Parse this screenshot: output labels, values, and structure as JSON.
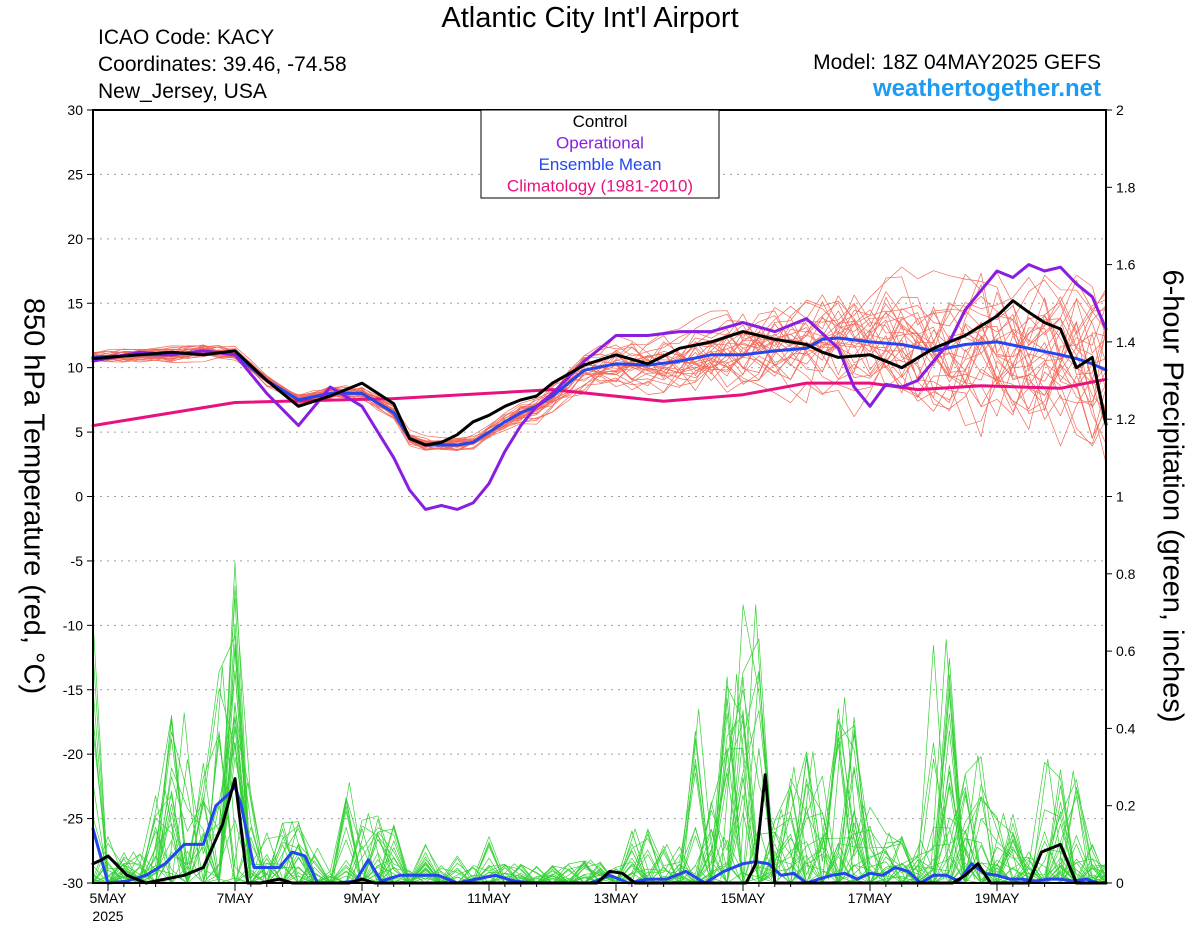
{
  "header": {
    "title": "Atlantic City Int'l Airport",
    "icao": "ICAO Code: KACY",
    "coordinates": "Coordinates: 39.46, -74.58",
    "location": "New_Jersey, USA",
    "model": "Model: 18Z 04MAY2025 GEFS",
    "site": "weathertogether.net"
  },
  "chart_data": {
    "type": "line",
    "ylabel_left": "850 hPa Temperature (red, °C)",
    "ylabel_right": "6-hour Precipitation (green, inches)",
    "ylim_left": [
      -30,
      30
    ],
    "ylim_right": [
      0,
      2
    ],
    "x_unit": "days after 00Z 5MAY 2025",
    "xlim": [
      0,
      15.75
    ],
    "x_ticks": [
      {
        "x": 0,
        "label": "5MAY",
        "sublabel": "2025"
      },
      {
        "x": 2,
        "label": "7MAY"
      },
      {
        "x": 4,
        "label": "9MAY"
      },
      {
        "x": 6,
        "label": "11MAY"
      },
      {
        "x": 8,
        "label": "13MAY"
      },
      {
        "x": 10,
        "label": "15MAY"
      },
      {
        "x": 12,
        "label": "17MAY"
      },
      {
        "x": 14,
        "label": "19MAY"
      }
    ],
    "y_ticks_left": [
      30,
      25,
      20,
      15,
      10,
      5,
      0,
      -5,
      -10,
      -15,
      -20,
      -25,
      -30
    ],
    "y_ticks_right": [
      2,
      1.8,
      1.6,
      1.4,
      1.2,
      1,
      0.8,
      0.6,
      0.4,
      0.2,
      0
    ],
    "grid": true,
    "legend_position": "top-center",
    "legend": [
      {
        "name": "Control",
        "color": "#000000"
      },
      {
        "name": "Operational",
        "color": "#8a1ee0"
      },
      {
        "name": "Ensemble Mean",
        "color": "#2346ee"
      },
      {
        "name": "Climatology (1981-2010)",
        "color": "#e8117f"
      }
    ],
    "colors": {
      "members_temp": "#f26a5a",
      "members_precip": "#36d136"
    },
    "temperature": {
      "climatology": {
        "x": [
          -0.25,
          2.0,
          4.5,
          7.0,
          8.75,
          10.0,
          11.0,
          12.0,
          12.75,
          13.75,
          15.0,
          16.0
        ],
        "y": [
          5.5,
          7.3,
          7.6,
          8.3,
          7.4,
          7.9,
          8.8,
          8.8,
          8.3,
          8.6,
          8.4,
          9.1
        ]
      },
      "control": {
        "x": [
          -0.25,
          0.5,
          1.0,
          1.5,
          2.0,
          2.5,
          3.0,
          3.5,
          4.0,
          4.5,
          4.75,
          5.0,
          5.25,
          5.5,
          5.75,
          6.0,
          6.25,
          6.5,
          6.75,
          7.0,
          7.5,
          8.0,
          8.5,
          9.0,
          9.5,
          10.0,
          10.5,
          11.0,
          11.25,
          11.5,
          12.0,
          12.5,
          13.0,
          13.5,
          14.0,
          14.25,
          14.5,
          14.75,
          15.0,
          15.25,
          15.5,
          15.75
        ],
        "y": [
          10.7,
          11.0,
          11.2,
          11.0,
          11.3,
          9.0,
          7.0,
          7.8,
          8.8,
          7.2,
          4.5,
          4.0,
          4.2,
          4.8,
          5.8,
          6.3,
          7.0,
          7.5,
          7.8,
          8.8,
          10.2,
          11.0,
          10.3,
          11.5,
          12.0,
          12.8,
          12.2,
          11.8,
          11.2,
          10.8,
          11.0,
          10.0,
          11.5,
          12.5,
          14.0,
          15.2,
          14.3,
          13.5,
          13.0,
          10.0,
          10.8,
          5.6
        ]
      },
      "operational": {
        "x": [
          -0.25,
          0.5,
          1.0,
          1.5,
          2.0,
          2.5,
          3.0,
          3.5,
          4.0,
          4.25,
          4.5,
          4.75,
          5.0,
          5.25,
          5.5,
          5.75,
          6.0,
          6.25,
          6.5,
          6.75,
          7.0,
          7.5,
          8.0,
          8.5,
          9.0,
          9.5,
          10.0,
          10.5,
          11.0,
          11.5,
          11.75,
          12.0,
          12.25,
          12.5,
          12.75,
          13.0,
          13.25,
          13.5,
          13.75,
          14.0,
          14.25,
          14.5,
          14.75,
          15.0,
          15.25,
          15.5,
          15.75
        ],
        "y": [
          10.5,
          11.2,
          11.0,
          11.3,
          11.0,
          8.0,
          5.5,
          8.5,
          7.0,
          5.0,
          3.0,
          0.5,
          -1.0,
          -0.7,
          -1.0,
          -0.5,
          1.0,
          3.5,
          5.5,
          7.0,
          8.0,
          10.5,
          12.5,
          12.5,
          12.8,
          12.8,
          13.5,
          12.8,
          13.8,
          11.5,
          8.5,
          7.0,
          8.7,
          8.5,
          9.0,
          10.5,
          12.0,
          14.5,
          16.0,
          17.5,
          17.0,
          18.0,
          17.5,
          17.8,
          16.5,
          15.5,
          13.0
        ]
      },
      "mean": {
        "x": [
          -0.25,
          0.5,
          1.0,
          1.5,
          2.0,
          2.5,
          3.0,
          3.5,
          4.0,
          4.5,
          4.75,
          5.0,
          5.25,
          5.5,
          5.75,
          6.0,
          6.25,
          6.5,
          6.75,
          7.0,
          7.5,
          8.0,
          8.5,
          9.0,
          9.5,
          10.0,
          10.5,
          11.0,
          11.25,
          11.5,
          12.0,
          12.5,
          13.0,
          13.5,
          14.0,
          14.5,
          15.0,
          15.25,
          15.5,
          15.75
        ],
        "y": [
          10.8,
          11.0,
          11.0,
          11.3,
          11.0,
          9.0,
          7.5,
          8.0,
          8.0,
          6.5,
          4.5,
          4.0,
          4.0,
          4.0,
          4.2,
          5.0,
          5.8,
          6.5,
          7.0,
          7.8,
          9.8,
          10.3,
          10.2,
          10.5,
          11.0,
          11.0,
          11.3,
          11.5,
          12.2,
          12.3,
          12.0,
          11.8,
          11.3,
          11.8,
          12.0,
          11.5,
          11.0,
          10.7,
          10.3,
          9.8
        ]
      }
    },
    "precipitation": {
      "control": {
        "x": [
          -0.25,
          -0.1,
          0.0,
          0.3,
          0.6,
          0.9,
          1.2,
          1.5,
          1.8,
          2.0,
          2.2,
          2.4,
          2.7,
          2.9,
          3.2,
          3.5,
          3.8,
          4.0,
          4.2,
          4.5,
          4.8,
          5.1,
          5.4,
          5.7,
          6.0,
          6.3,
          6.6,
          6.9,
          7.2,
          7.5,
          7.7,
          7.9,
          8.1,
          8.3,
          8.5,
          8.8,
          9.1,
          9.4,
          9.7,
          9.9,
          10.05,
          10.2,
          10.35,
          10.5,
          10.7,
          11.0,
          11.5,
          12.0,
          12.5,
          13.0,
          13.3,
          13.5,
          13.7,
          13.9,
          14.1,
          14.3,
          14.5,
          14.7,
          15.0,
          15.25,
          15.5,
          15.75
        ],
        "y": [
          0.05,
          0.06,
          0.07,
          0.02,
          0.0,
          0.01,
          0.02,
          0.04,
          0.15,
          0.27,
          0.0,
          0.0,
          0.01,
          0.0,
          0.0,
          0.0,
          0.0,
          0.01,
          0.0,
          0.0,
          0.0,
          0.0,
          0.0,
          0.0,
          0.0,
          0.0,
          0.0,
          0.0,
          0.0,
          0.0,
          0.0,
          0.03,
          0.025,
          0.0,
          0.0,
          0.0,
          0.0,
          0.0,
          0.0,
          0.0,
          0.0,
          0.05,
          0.28,
          0.0,
          0.0,
          0.0,
          0.0,
          0.0,
          0.0,
          0.0,
          0.0,
          0.02,
          0.05,
          0.0,
          0.0,
          0.0,
          0.0,
          0.08,
          0.1,
          0.0,
          0.0,
          0.0
        ]
      },
      "mean": {
        "x": [
          -0.25,
          0.0,
          0.3,
          0.6,
          0.9,
          1.2,
          1.5,
          1.7,
          1.9,
          2.0,
          2.1,
          2.3,
          2.5,
          2.7,
          2.9,
          3.1,
          3.3,
          3.6,
          3.9,
          4.1,
          4.3,
          4.6,
          4.9,
          5.2,
          5.5,
          5.8,
          6.1,
          6.4,
          6.7,
          7.0,
          7.3,
          7.6,
          7.9,
          8.2,
          8.5,
          8.8,
          9.1,
          9.4,
          9.7,
          10.0,
          10.2,
          10.4,
          10.6,
          10.8,
          11.0,
          11.2,
          11.4,
          11.6,
          11.8,
          12.0,
          12.2,
          12.4,
          12.6,
          12.8,
          13.0,
          13.2,
          13.4,
          13.6,
          13.8,
          14.0,
          14.2,
          14.4,
          14.6,
          14.8,
          15.0,
          15.2,
          15.4,
          15.6,
          15.75
        ],
        "y": [
          0.14,
          0.0,
          0.005,
          0.02,
          0.05,
          0.1,
          0.1,
          0.2,
          0.23,
          0.25,
          0.2,
          0.04,
          0.04,
          0.04,
          0.08,
          0.07,
          0.0,
          0.0,
          0.005,
          0.06,
          0.005,
          0.02,
          0.02,
          0.02,
          0.0,
          0.01,
          0.02,
          0.005,
          0.0,
          0.0,
          0.0,
          0.0,
          0.02,
          0.0,
          0.01,
          0.01,
          0.03,
          0.0,
          0.03,
          0.05,
          0.055,
          0.05,
          0.02,
          0.025,
          0.0,
          0.01,
          0.02,
          0.025,
          0.01,
          0.025,
          0.02,
          0.04,
          0.03,
          0.0,
          0.02,
          0.02,
          0.005,
          0.05,
          0.025,
          0.02,
          0.01,
          0.01,
          0.005,
          0.01,
          0.01,
          0.005,
          0.01,
          0.0,
          0.0
        ]
      },
      "ensemble_peaks": [
        {
          "x": -0.25,
          "y": 0.68
        },
        {
          "x": 0.0,
          "y": 0.12
        },
        {
          "x": 0.4,
          "y": 0.08
        },
        {
          "x": 0.9,
          "y": 0.24
        },
        {
          "x": 1.2,
          "y": 0.44
        },
        {
          "x": 1.5,
          "y": 0.31
        },
        {
          "x": 1.8,
          "y": 0.56
        },
        {
          "x": 2.0,
          "y": 0.83
        },
        {
          "x": 2.2,
          "y": 0.26
        },
        {
          "x": 2.5,
          "y": 0.13
        },
        {
          "x": 2.9,
          "y": 0.16
        },
        {
          "x": 3.3,
          "y": 0.09
        },
        {
          "x": 3.8,
          "y": 0.26
        },
        {
          "x": 4.1,
          "y": 0.18
        },
        {
          "x": 4.5,
          "y": 0.15
        },
        {
          "x": 5.0,
          "y": 0.1
        },
        {
          "x": 5.5,
          "y": 0.07
        },
        {
          "x": 6.0,
          "y": 0.12
        },
        {
          "x": 6.4,
          "y": 0.05
        },
        {
          "x": 7.0,
          "y": 0.04
        },
        {
          "x": 7.6,
          "y": 0.06
        },
        {
          "x": 8.3,
          "y": 0.14
        },
        {
          "x": 8.8,
          "y": 0.1
        },
        {
          "x": 9.3,
          "y": 0.45
        },
        {
          "x": 9.7,
          "y": 0.12
        },
        {
          "x": 9.9,
          "y": 0.54
        },
        {
          "x": 10.2,
          "y": 0.72
        },
        {
          "x": 10.6,
          "y": 0.19
        },
        {
          "x": 10.8,
          "y": 0.3
        },
        {
          "x": 11.1,
          "y": 0.34
        },
        {
          "x": 11.3,
          "y": 0.13
        },
        {
          "x": 11.6,
          "y": 0.48
        },
        {
          "x": 11.9,
          "y": 0.2
        },
        {
          "x": 12.3,
          "y": 0.13
        },
        {
          "x": 12.8,
          "y": 0.11
        },
        {
          "x": 13.2,
          "y": 0.63
        },
        {
          "x": 13.4,
          "y": 0.14
        },
        {
          "x": 13.7,
          "y": 0.33
        },
        {
          "x": 14.1,
          "y": 0.18
        },
        {
          "x": 14.5,
          "y": 0.08
        },
        {
          "x": 14.8,
          "y": 0.32
        },
        {
          "x": 15.2,
          "y": 0.29
        },
        {
          "x": 15.5,
          "y": 0.1
        },
        {
          "x": 15.75,
          "y": 0.05
        }
      ]
    }
  }
}
